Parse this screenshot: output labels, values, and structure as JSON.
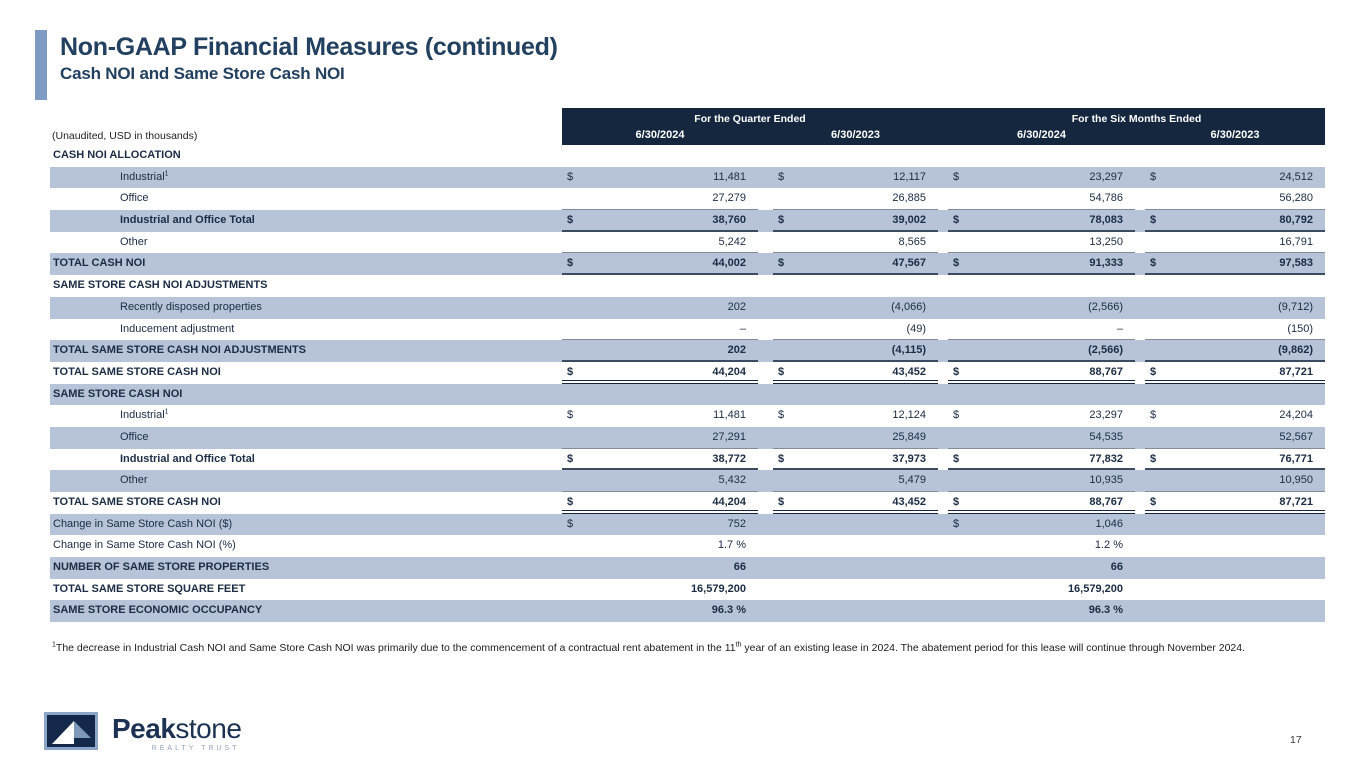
{
  "header": {
    "title": "Non-GAAP Financial Measures (continued)",
    "subtitle": "Cash NOI and Same Store Cash NOI"
  },
  "table": {
    "unaudited_note": "(Unaudited, USD in thousands)",
    "col_groups": [
      {
        "label": "For the Quarter Ended",
        "dates": [
          "6/30/2024",
          "6/30/2023"
        ]
      },
      {
        "label": "For the Six Months Ended",
        "dates": [
          "6/30/2024",
          "6/30/2023"
        ]
      }
    ],
    "rows": [
      {
        "label": "CASH NOI ALLOCATION",
        "section": true,
        "bold": true,
        "band": false,
        "values": [
          "",
          "",
          "",
          ""
        ],
        "dollars": [
          false,
          false,
          false,
          false
        ],
        "underline": "none"
      },
      {
        "label": "Industrial",
        "sup": "1",
        "indent": true,
        "band": true,
        "values": [
          "11,481",
          "12,117",
          "23,297",
          "24,512"
        ],
        "dollars": [
          true,
          true,
          true,
          true
        ],
        "underline": "none"
      },
      {
        "label": "Office",
        "indent": true,
        "band": false,
        "values": [
          "27,279",
          "26,885",
          "54,786",
          "56,280"
        ],
        "dollars": [
          false,
          false,
          false,
          false
        ],
        "underline": "gray"
      },
      {
        "label": "Industrial and Office Total",
        "indent": true,
        "bold": true,
        "band": true,
        "values": [
          "38,760",
          "39,002",
          "78,083",
          "80,792"
        ],
        "dollars": [
          true,
          true,
          true,
          true
        ],
        "underline": "dark"
      },
      {
        "label": "Other",
        "indent": true,
        "band": false,
        "values": [
          "5,242",
          "8,565",
          "13,250",
          "16,791"
        ],
        "dollars": [
          false,
          false,
          false,
          false
        ],
        "underline": "gray"
      },
      {
        "label": "TOTAL CASH NOI",
        "bold": true,
        "band": true,
        "values": [
          "44,002",
          "47,567",
          "91,333",
          "97,583"
        ],
        "dollars": [
          true,
          true,
          true,
          true
        ],
        "underline": "dark"
      },
      {
        "label": "SAME STORE CASH NOI ADJUSTMENTS",
        "section": true,
        "bold": true,
        "band": false,
        "values": [
          "",
          "",
          "",
          ""
        ],
        "dollars": [
          false,
          false,
          false,
          false
        ],
        "underline": "none"
      },
      {
        "label": "Recently disposed properties",
        "indent": true,
        "band": true,
        "values": [
          "202",
          "(4,066)",
          "(2,566)",
          "(9,712)"
        ],
        "dollars": [
          false,
          false,
          false,
          false
        ],
        "underline": "none"
      },
      {
        "label": "Inducement adjustment",
        "indent": true,
        "band": false,
        "values": [
          "–",
          "(49)",
          "–",
          "(150)"
        ],
        "dollars": [
          false,
          false,
          false,
          false
        ],
        "underline": "gray"
      },
      {
        "label": "TOTAL SAME STORE CASH NOI ADJUSTMENTS",
        "bold": true,
        "band": true,
        "values": [
          "202",
          "(4,115)",
          "(2,566)",
          "(9,862)"
        ],
        "dollars": [
          false,
          false,
          false,
          false
        ],
        "underline": "dark"
      },
      {
        "label": "TOTAL SAME STORE CASH NOI",
        "bold": true,
        "band": false,
        "values": [
          "44,204",
          "43,452",
          "88,767",
          "87,721"
        ],
        "dollars": [
          true,
          true,
          true,
          true
        ],
        "underline": "double"
      },
      {
        "label": "SAME STORE CASH NOI",
        "section": true,
        "bold": true,
        "band": true,
        "values": [
          "",
          "",
          "",
          ""
        ],
        "dollars": [
          false,
          false,
          false,
          false
        ],
        "underline": "none"
      },
      {
        "label": "Industrial",
        "sup": "1",
        "indent": true,
        "band": false,
        "values": [
          "11,481",
          "12,124",
          "23,297",
          "24,204"
        ],
        "dollars": [
          true,
          true,
          true,
          true
        ],
        "underline": "none"
      },
      {
        "label": "Office",
        "indent": true,
        "band": true,
        "values": [
          "27,291",
          "25,849",
          "54,535",
          "52,567"
        ],
        "dollars": [
          false,
          false,
          false,
          false
        ],
        "underline": "gray"
      },
      {
        "label": "Industrial and Office Total",
        "indent": true,
        "bold": true,
        "band": false,
        "values": [
          "38,772",
          "37,973",
          "77,832",
          "76,771"
        ],
        "dollars": [
          true,
          true,
          true,
          true
        ],
        "underline": "dark"
      },
      {
        "label": "Other",
        "indent": true,
        "band": true,
        "values": [
          "5,432",
          "5,479",
          "10,935",
          "10,950"
        ],
        "dollars": [
          false,
          false,
          false,
          false
        ],
        "underline": "gray"
      },
      {
        "label": "TOTAL SAME STORE CASH NOI",
        "bold": true,
        "band": false,
        "values": [
          "44,204",
          "43,452",
          "88,767",
          "87,721"
        ],
        "dollars": [
          true,
          true,
          true,
          true
        ],
        "underline": "double"
      },
      {
        "label": "Change in Same Store Cash NOI ($)",
        "band": true,
        "values": [
          "752",
          "",
          "1,046",
          ""
        ],
        "dollars": [
          true,
          false,
          true,
          false
        ],
        "underline": "none"
      },
      {
        "label": "Change in Same Store Cash NOI (%)",
        "band": false,
        "values": [
          "1.7 %",
          "",
          "1.2 %",
          ""
        ],
        "dollars": [
          false,
          false,
          false,
          false
        ],
        "underline": "none"
      },
      {
        "label": "NUMBER OF SAME STORE PROPERTIES",
        "bold": true,
        "band": true,
        "values": [
          "66",
          "",
          "66",
          ""
        ],
        "dollars": [
          false,
          false,
          false,
          false
        ],
        "underline": "none"
      },
      {
        "label": "TOTAL SAME STORE SQUARE FEET",
        "bold": true,
        "band": false,
        "values": [
          "16,579,200",
          "",
          "16,579,200",
          ""
        ],
        "dollars": [
          false,
          false,
          false,
          false
        ],
        "underline": "none"
      },
      {
        "label": "SAME STORE ECONOMIC OCCUPANCY",
        "bold": true,
        "band": true,
        "values": [
          "96.3 %",
          "",
          "96.3 %",
          ""
        ],
        "dollars": [
          false,
          false,
          false,
          false
        ],
        "underline": "none"
      }
    ]
  },
  "footnote": {
    "sup1": "1",
    "part1": "The decrease in Industrial Cash NOI and Same Store Cash NOI was primarily due to the commencement of a contractual rent abatement in the 11",
    "sup2": "th",
    "part2": " year of an existing lease in 2024. The abatement period for this lease will continue through November 2024."
  },
  "logo": {
    "brand_bold": "Peak",
    "brand_light": "stone",
    "tagline": "REALTY TRUST"
  },
  "page": {
    "number": "17"
  },
  "colors": {
    "header_navy": "#14273f",
    "row_band_blue": "#b7c3d8",
    "accent_light_blue": "#7e9cc3",
    "title_navy": "#22405f"
  }
}
